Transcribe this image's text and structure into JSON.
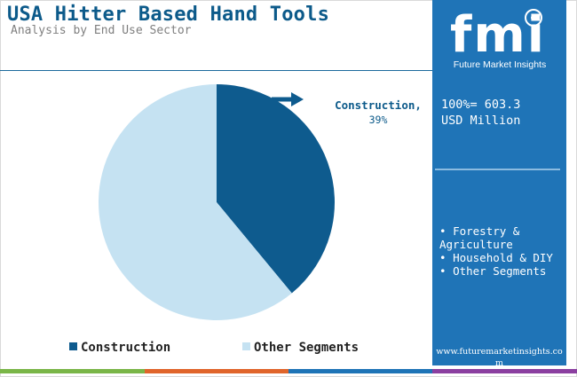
{
  "header": {
    "title": "USA Hitter Based Hand Tools",
    "subtitle": "Analysis by End Use Sector"
  },
  "sidebar": {
    "brand_mark": "fmi",
    "brand_name": "Future Market Insights",
    "stat_line1": "100%= 603.3",
    "stat_line2": "USD Million",
    "segments": [
      "Forestry & Agriculture",
      "Household & DIY",
      "Other Segments"
    ],
    "website": "www.futuremarketinsights.com",
    "background_color": "#1f74b7"
  },
  "chart_data": {
    "type": "pie",
    "title": "",
    "slices": [
      {
        "name": "Construction",
        "value": 39,
        "color": "#0e5b8e"
      },
      {
        "name": "Other Segments",
        "value": 61,
        "color": "#c5e2f2"
      }
    ],
    "data_labels": [
      {
        "slice": "Construction",
        "line1": "Construction,",
        "line2": "39%"
      }
    ],
    "legend_position": "bottom",
    "legend": [
      "Construction",
      "Other Segments"
    ]
  },
  "footer": {
    "bar_colors": [
      "#7ab648",
      "#e0652b",
      "#1f74b7",
      "#8b3fa0"
    ]
  }
}
